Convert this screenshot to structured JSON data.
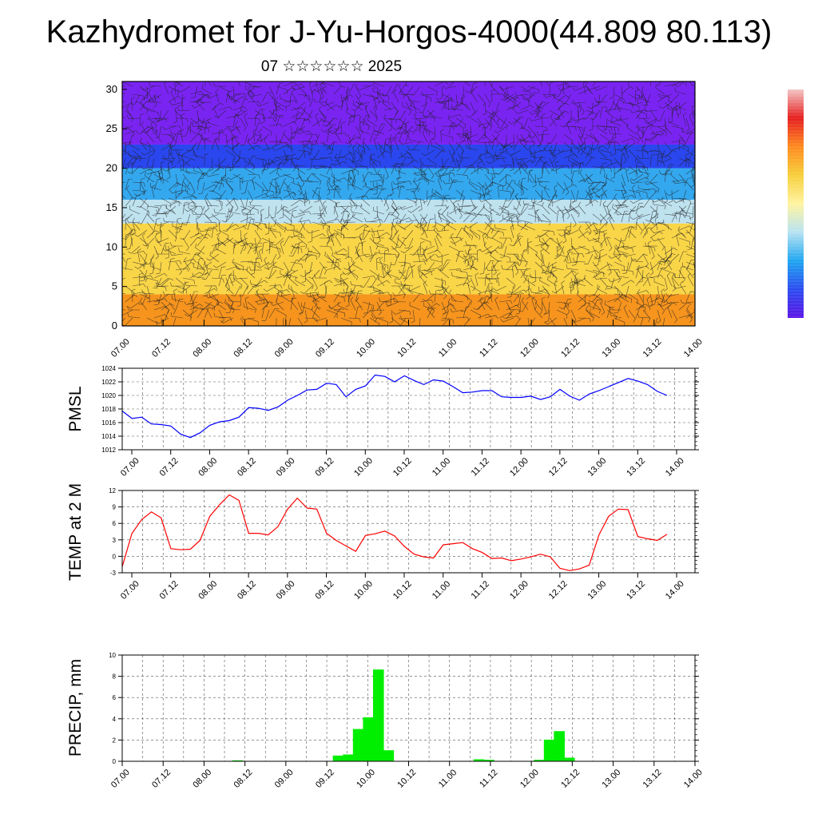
{
  "title": "Kazhydromet for J-Yu-Horgos-4000(44.809 80.113)",
  "subtitle": "07 ☆☆☆☆☆☆ 2025",
  "chart_data": [
    {
      "type": "heatmap",
      "ylim": [
        0,
        31
      ],
      "y_ticks": [
        0,
        5,
        10,
        15,
        20,
        25,
        30
      ],
      "x_tick_labels": [
        "07.00",
        "07.12",
        "08.00",
        "08.12",
        "09.00",
        "09.12",
        "10.00",
        "10.12",
        "11.00",
        "11.12",
        "12.00",
        "12.12",
        "13.00",
        "13.12",
        "14.00"
      ],
      "colorbar_colors": [
        "#5a14e6",
        "#2b4cf0",
        "#1ea6f0",
        "#b7e3f2",
        "#fff4a0",
        "#f7cf3a",
        "#ff8a1e",
        "#e61e1e",
        "#f4c4c4"
      ],
      "wind_barbs": true,
      "layers": [
        {
          "band_top": 4,
          "color": "#f6941e"
        },
        {
          "band_top": 13,
          "color": "#f9d548"
        },
        {
          "band_top": 16,
          "color": "#bfe2ef"
        },
        {
          "band_top": 20,
          "color": "#34a8ef"
        },
        {
          "band_top": 23,
          "color": "#2a46ee"
        },
        {
          "band_top": 31,
          "color": "#7a24f2"
        }
      ]
    },
    {
      "type": "line",
      "ylabel": "PMSL",
      "ylim": [
        1012,
        1024
      ],
      "y_ticks": [
        1012,
        1014,
        1016,
        1018,
        1020,
        1022,
        1024
      ],
      "x_tick_labels": [
        "07.00",
        "07.12",
        "08.00",
        "08.12",
        "09.00",
        "09.12",
        "10.00",
        "10.12",
        "11.00",
        "11.12",
        "12.00",
        "12.12",
        "13.00",
        "13.12",
        "14.00"
      ],
      "series": [
        {
          "color": "#0000ff",
          "values": [
            1017.7,
            1016.6,
            1016.8,
            1015.8,
            1015.7,
            1015.5,
            1014.3,
            1013.8,
            1014.5,
            1015.6,
            1016.1,
            1016.3,
            1016.8,
            1018.2,
            1018.1,
            1017.8,
            1018.3,
            1019.3,
            1020.0,
            1020.8,
            1020.9,
            1021.8,
            1021.6,
            1019.8,
            1020.9,
            1021.4,
            1023.0,
            1022.8,
            1022.0,
            1022.9,
            1022.2,
            1021.6,
            1022.3,
            1022.1,
            1021.3,
            1020.4,
            1020.5,
            1020.7,
            1020.7,
            1019.8,
            1019.7,
            1019.7,
            1019.9,
            1019.4,
            1019.8,
            1020.9,
            1019.9,
            1019.3,
            1020.2,
            1020.7,
            1021.3,
            1021.9,
            1022.5,
            1022.1,
            1021.6,
            1020.6,
            1020.0
          ]
        }
      ]
    },
    {
      "type": "line",
      "ylabel": "TEMP at 2 M",
      "ylim": [
        -3,
        12
      ],
      "y_ticks": [
        -3,
        0,
        3,
        6,
        9,
        12
      ],
      "x_tick_labels": [
        "07.00",
        "07.12",
        "08.00",
        "08.12",
        "09.00",
        "09.12",
        "10.00",
        "10.12",
        "11.00",
        "11.12",
        "12.00",
        "12.12",
        "13.00",
        "13.12",
        "14.00"
      ],
      "series": [
        {
          "color": "#ff0000",
          "values": [
            -1.9,
            4.2,
            6.7,
            8.1,
            7.0,
            1.4,
            1.2,
            1.3,
            2.9,
            7.3,
            9.4,
            11.2,
            10.2,
            4.2,
            4.2,
            3.9,
            5.4,
            8.6,
            10.6,
            8.8,
            8.6,
            4.2,
            2.9,
            1.9,
            0.9,
            3.8,
            4.1,
            4.6,
            3.7,
            1.8,
            0.4,
            -0.1,
            -0.3,
            2.1,
            2.3,
            2.5,
            1.4,
            0.7,
            -0.4,
            -0.3,
            -0.8,
            -0.5,
            -0.1,
            0.4,
            -0.1,
            -2.2,
            -2.6,
            -2.3,
            -1.6,
            3.9,
            7.3,
            8.6,
            8.5,
            3.6,
            3.2,
            2.9,
            4.0
          ]
        }
      ]
    },
    {
      "type": "bar",
      "ylabel": "PRECIP, mm",
      "ylim": [
        0,
        10
      ],
      "y_ticks": [
        0,
        2,
        4,
        6,
        8,
        10
      ],
      "x_tick_labels": [
        "07.00",
        "07.12",
        "08.00",
        "08.12",
        "09.00",
        "09.12",
        "10.00",
        "10.12",
        "11.00",
        "11.12",
        "12.00",
        "12.12",
        "13.00",
        "13.12",
        "14.00"
      ],
      "bar_color": "#00ee00",
      "values": [
        0,
        0,
        0,
        0,
        0,
        0,
        0,
        0,
        0,
        0,
        0,
        0.05,
        0,
        0,
        0,
        0,
        0,
        0,
        0,
        0,
        0,
        0.5,
        0.6,
        3.0,
        4.1,
        8.6,
        1.0,
        0,
        0,
        0,
        0,
        0,
        0,
        0,
        0,
        0.15,
        0.1,
        0,
        0,
        0,
        0,
        0.1,
        2.0,
        2.8,
        0.3,
        0,
        0,
        0,
        0,
        0,
        0,
        0,
        0,
        0,
        0,
        0,
        0
      ]
    }
  ]
}
